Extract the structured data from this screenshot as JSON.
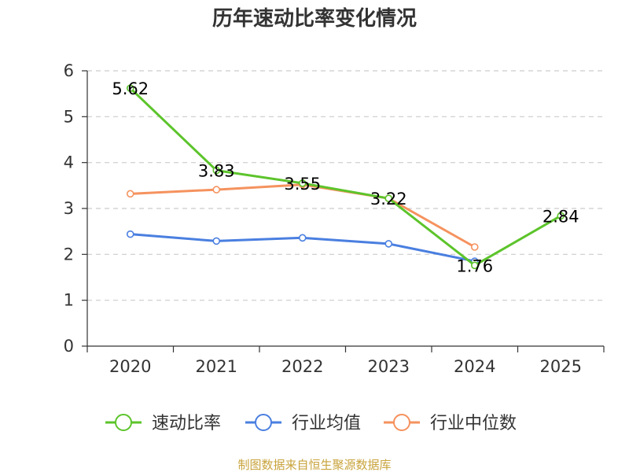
{
  "chart_data": {
    "type": "line",
    "title": "历年速动比率变化情况",
    "categories": [
      "2020",
      "2021",
      "2022",
      "2023",
      "2024",
      "2025"
    ],
    "ylim": [
      0,
      6
    ],
    "yticks": [
      0,
      1,
      2,
      3,
      4,
      5,
      6
    ],
    "grid": true,
    "legend_position": "bottom",
    "series": [
      {
        "name": "速动比率",
        "color": "#5cc42b",
        "values": [
          5.62,
          3.83,
          3.55,
          3.22,
          1.76,
          2.84
        ],
        "labels": [
          "5.62",
          "3.83",
          "3.55",
          "3.22",
          "1.76",
          "2.84"
        ]
      },
      {
        "name": "行业均值",
        "color": "#4a7fe0",
        "values": [
          2.44,
          2.29,
          2.36,
          2.23,
          1.85,
          null
        ]
      },
      {
        "name": "行业中位数",
        "color": "#f5925e",
        "values": [
          3.32,
          3.41,
          3.52,
          3.22,
          2.16,
          null
        ]
      }
    ],
    "source": "制图数据来自恒生聚源数据库"
  }
}
